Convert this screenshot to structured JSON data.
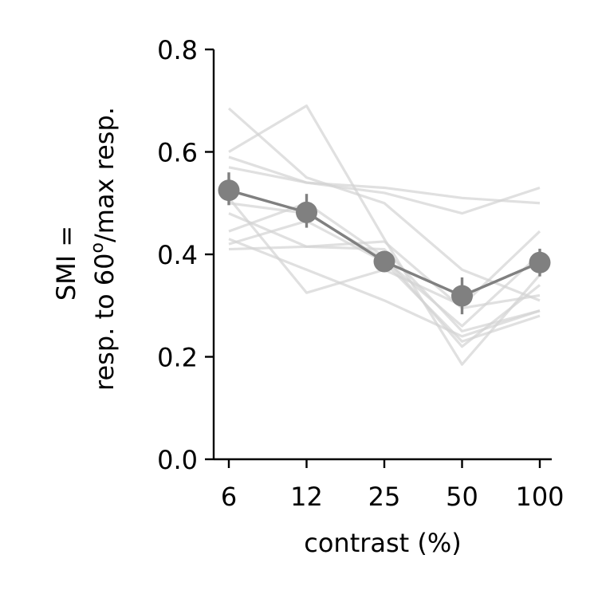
{
  "chart_data": {
    "type": "line",
    "xlabel": "contrast (%)",
    "ylabel_line1": "SMI =",
    "ylabel_line2": {
      "prefix": "resp. to 60",
      "superscript": "o",
      "suffix": "/max resp."
    },
    "categories": [
      "6",
      "12",
      "25",
      "50",
      "100"
    ],
    "ylim": [
      0,
      0.8
    ],
    "yticks": [
      "0.0",
      "0.2",
      "0.4",
      "0.6",
      "0.8"
    ],
    "ytick_values": [
      0,
      0.2,
      0.4,
      0.6,
      0.8
    ],
    "grid": false,
    "legend": "none",
    "colors": {
      "mean": "#808080",
      "individual": "#d3d3d3",
      "axis": "#000000"
    },
    "mean": {
      "values": [
        0.525,
        0.482,
        0.386,
        0.319,
        0.384
      ],
      "error_low": [
        0.496,
        0.452,
        0.372,
        0.283,
        0.357
      ],
      "error_high": [
        0.56,
        0.518,
        0.4,
        0.355,
        0.411
      ]
    },
    "individual_series": [
      [
        0.685,
        0.55,
        0.5,
        0.37,
        0.31
      ],
      [
        0.6,
        0.69,
        0.43,
        0.185,
        0.36
      ],
      [
        0.59,
        0.54,
        0.52,
        0.48,
        0.53
      ],
      [
        0.51,
        0.325,
        0.37,
        0.3,
        0.445
      ],
      [
        0.48,
        0.415,
        0.41,
        0.25,
        0.29
      ],
      [
        0.445,
        0.5,
        0.395,
        0.22,
        0.34
      ],
      [
        0.41,
        0.415,
        0.425,
        0.295,
        0.32
      ],
      [
        0.57,
        0.54,
        0.53,
        0.51,
        0.5
      ],
      [
        0.43,
        0.37,
        0.31,
        0.24,
        0.29
      ],
      [
        0.42,
        0.465,
        0.385,
        0.23,
        0.28
      ],
      [
        0.5,
        0.48,
        0.39,
        0.26,
        0.4
      ]
    ]
  }
}
